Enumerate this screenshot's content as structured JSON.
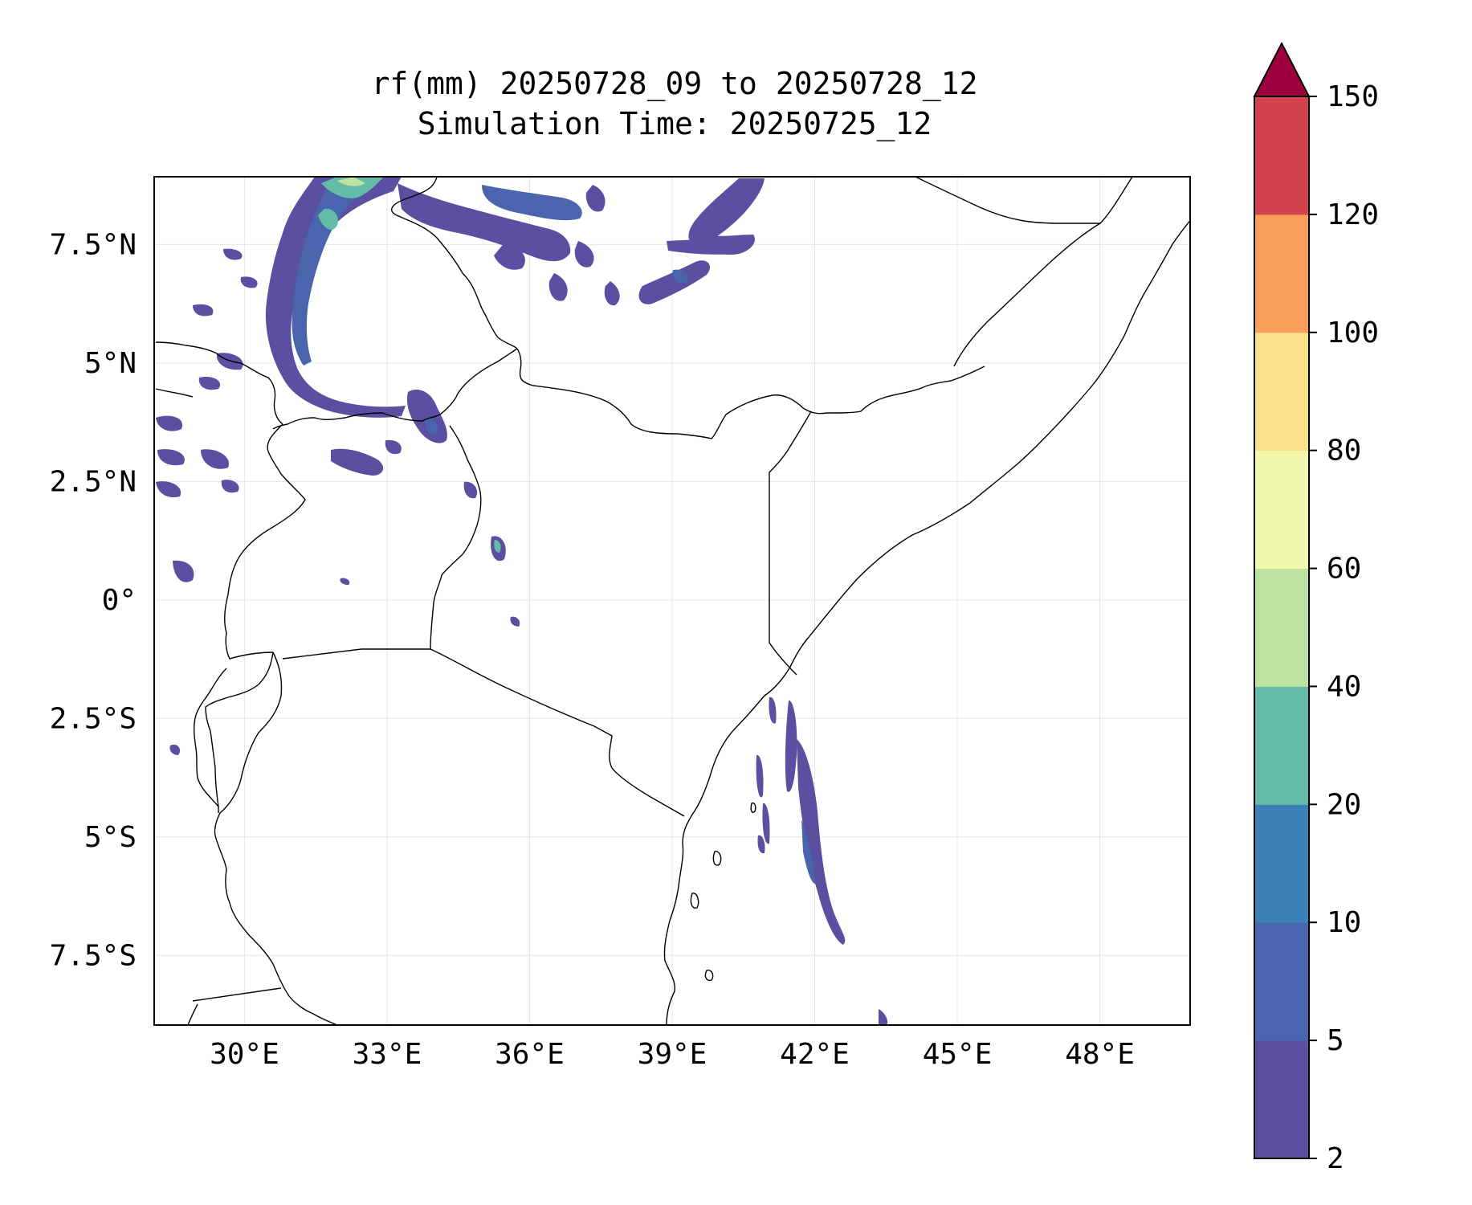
{
  "title": {
    "line1": "rf(mm) 20250728_09 to 20250728_12",
    "line2": "Simulation Time: 20250725_12"
  },
  "map": {
    "lon_range": [
      28.1,
      49.9
    ],
    "lat_range": [
      -8.97,
      8.93
    ],
    "lon_ticks": [
      {
        "value": 30,
        "label": "30°E"
      },
      {
        "value": 33,
        "label": "33°E"
      },
      {
        "value": 36,
        "label": "36°E"
      },
      {
        "value": 39,
        "label": "39°E"
      },
      {
        "value": 42,
        "label": "42°E"
      },
      {
        "value": 45,
        "label": "45°E"
      },
      {
        "value": 48,
        "label": "48°E"
      }
    ],
    "lat_ticks": [
      {
        "value": 7.5,
        "label": "7.5°N"
      },
      {
        "value": 5,
        "label": "5°N"
      },
      {
        "value": 2.5,
        "label": "2.5°N"
      },
      {
        "value": 0,
        "label": "0°"
      },
      {
        "value": -2.5,
        "label": "2.5°S"
      },
      {
        "value": -5,
        "label": "5°S"
      },
      {
        "value": -7.5,
        "label": "7.5°S"
      }
    ],
    "gridlines": true
  },
  "colorbar": {
    "levels": [
      "2",
      "5",
      "10",
      "20",
      "40",
      "60",
      "80",
      "100",
      "120",
      "150"
    ],
    "colors": [
      "#5a4fa0",
      "#4a64ad",
      "#3a80b9",
      "#64bca8",
      "#bde3a0",
      "#f2f9ad",
      "#fbe08c",
      "#f99d5a",
      "#d3404e"
    ],
    "extend_color": "#9e0142",
    "extend": "max"
  }
}
